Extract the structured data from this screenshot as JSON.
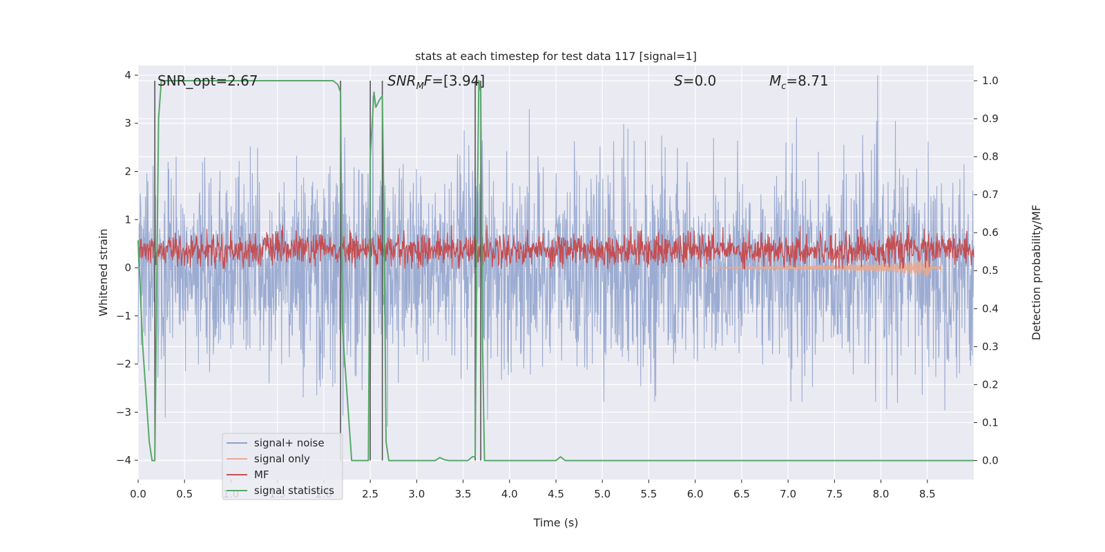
{
  "chart_data": {
    "type": "line",
    "title": "stats at each timestep for test data 117 [signal=1]",
    "xlabel": "Time (s)",
    "ylabel_left": "Whitened strain",
    "ylabel_right": "Detection probability/MF",
    "xlim": [
      0.0,
      9.0
    ],
    "ylim_left": [
      -4.4,
      4.2
    ],
    "ylim_right": [
      -0.05,
      1.04
    ],
    "x_ticks": [
      0.0,
      0.5,
      1.0,
      1.5,
      2.0,
      2.5,
      3.0,
      3.5,
      4.0,
      4.5,
      5.0,
      5.5,
      6.0,
      6.5,
      7.0,
      7.5,
      8.0,
      8.5
    ],
    "x_tick_labels": [
      "0.0",
      "0.5",
      "1.0",
      "1.5",
      "2.0",
      "2.5",
      "3.0",
      "3.5",
      "4.0",
      "4.5",
      "5.0",
      "5.5",
      "6.0",
      "6.5",
      "7.0",
      "7.5",
      "8.0",
      "8.5"
    ],
    "y_left_ticks": [
      -4,
      -3,
      -2,
      -1,
      0,
      1,
      2,
      3,
      4
    ],
    "y_left_tick_labels": [
      "−4",
      "−3",
      "−2",
      "−1",
      "0",
      "1",
      "2",
      "3",
      "4"
    ],
    "y_right_ticks": [
      0.0,
      0.1,
      0.2,
      0.3,
      0.4,
      0.5,
      0.6,
      0.7,
      0.8,
      0.9,
      1.0
    ],
    "y_right_tick_labels": [
      "0.0",
      "0.1",
      "0.2",
      "0.3",
      "0.4",
      "0.5",
      "0.6",
      "0.7",
      "0.8",
      "0.9",
      "1.0"
    ],
    "grid": true,
    "legend_position": "lower-left",
    "annotations": {
      "snr_opt": "SNR_opt=2.67",
      "snr_mf_base": "SNR",
      "snr_mf_sub": "M",
      "snr_mf_rest": "F=[3.94]",
      "s_italic": "S",
      "s_rest": "=0.0",
      "mc_base": "M",
      "mc_sub": "c",
      "mc_rest": "=8.71"
    },
    "vertical_lines_x": [
      0.18,
      2.18,
      2.5,
      2.63,
      3.63,
      3.69
    ],
    "series": [
      {
        "name": "signal+ noise",
        "axis": "left",
        "color": "#8da0cb",
        "description_values": {
          "range": [
            -4.0,
            4.0
          ],
          "typical_amplitude": 1.0
        }
      },
      {
        "name": "signal only",
        "axis": "left",
        "color": "#e8a98f",
        "x": [
          6.0,
          6.5,
          7.0,
          7.5,
          8.0,
          8.3,
          8.5,
          8.6,
          8.65
        ],
        "envelope": [
          0.0,
          0.02,
          0.03,
          0.05,
          0.08,
          0.12,
          0.18,
          0.22,
          0.25
        ]
      },
      {
        "name": "MF",
        "axis": "right",
        "color": "#c44e52",
        "description_values": {
          "mean": 0.555,
          "range": [
            0.505,
            0.62
          ]
        }
      },
      {
        "name": "signal statistics",
        "axis": "right",
        "color": "#55a868",
        "x": [
          0.0,
          0.05,
          0.12,
          0.15,
          0.18,
          0.22,
          0.25,
          0.3,
          1.0,
          2.1,
          2.15,
          2.18,
          2.2,
          2.3,
          2.48,
          2.5,
          2.54,
          2.56,
          2.6,
          2.63,
          2.65,
          2.67,
          2.7,
          3.0,
          3.2,
          3.25,
          3.3,
          3.35,
          3.55,
          3.6,
          3.63,
          3.65,
          3.67,
          3.69,
          3.71,
          3.73,
          3.75,
          4.4,
          4.5,
          4.55,
          4.6,
          4.65,
          5.0,
          6.0,
          7.0,
          8.0,
          9.0
        ],
        "values": [
          0.58,
          0.3,
          0.05,
          0.0,
          0.0,
          0.9,
          1.0,
          1.0,
          1.0,
          1.0,
          0.99,
          0.97,
          0.35,
          0.0,
          0.0,
          0.8,
          0.97,
          0.93,
          0.95,
          0.96,
          0.6,
          0.05,
          0.0,
          0.0,
          0.0,
          0.008,
          0.002,
          0.0,
          0.0,
          0.01,
          0.01,
          0.6,
          1.0,
          0.97,
          0.3,
          0.0,
          0.0,
          0.0,
          0.0,
          0.01,
          0.0,
          0.0,
          0.0,
          0.0,
          0.0,
          0.0,
          0.0
        ]
      }
    ]
  }
}
